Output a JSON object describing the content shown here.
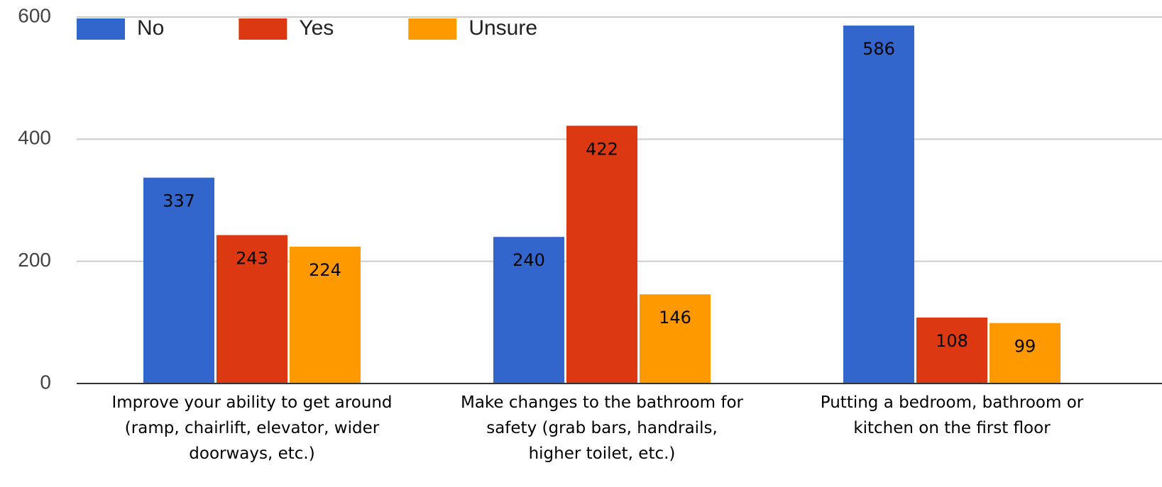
{
  "chart_data": {
    "type": "bar",
    "categories": [
      "Improve your ability to get around (ramp, chairlift, elevator, wider doorways, etc.)",
      "Make changes to the bathroom for safety (grab bars, handrails, higher toilet, etc.)",
      "Putting a bedroom, bathroom or kitchen on the first floor"
    ],
    "series": [
      {
        "name": "No",
        "color": "#3366cc",
        "values": [
          337,
          240,
          586
        ]
      },
      {
        "name": "Yes",
        "color": "#dc3912",
        "values": [
          243,
          422,
          108
        ]
      },
      {
        "name": "Unsure",
        "color": "#ff9900",
        "values": [
          224,
          146,
          99
        ]
      }
    ],
    "ylim": [
      0,
      600
    ],
    "yticks": [
      0,
      200,
      400,
      600
    ],
    "grid": true,
    "legend": "top-left"
  }
}
